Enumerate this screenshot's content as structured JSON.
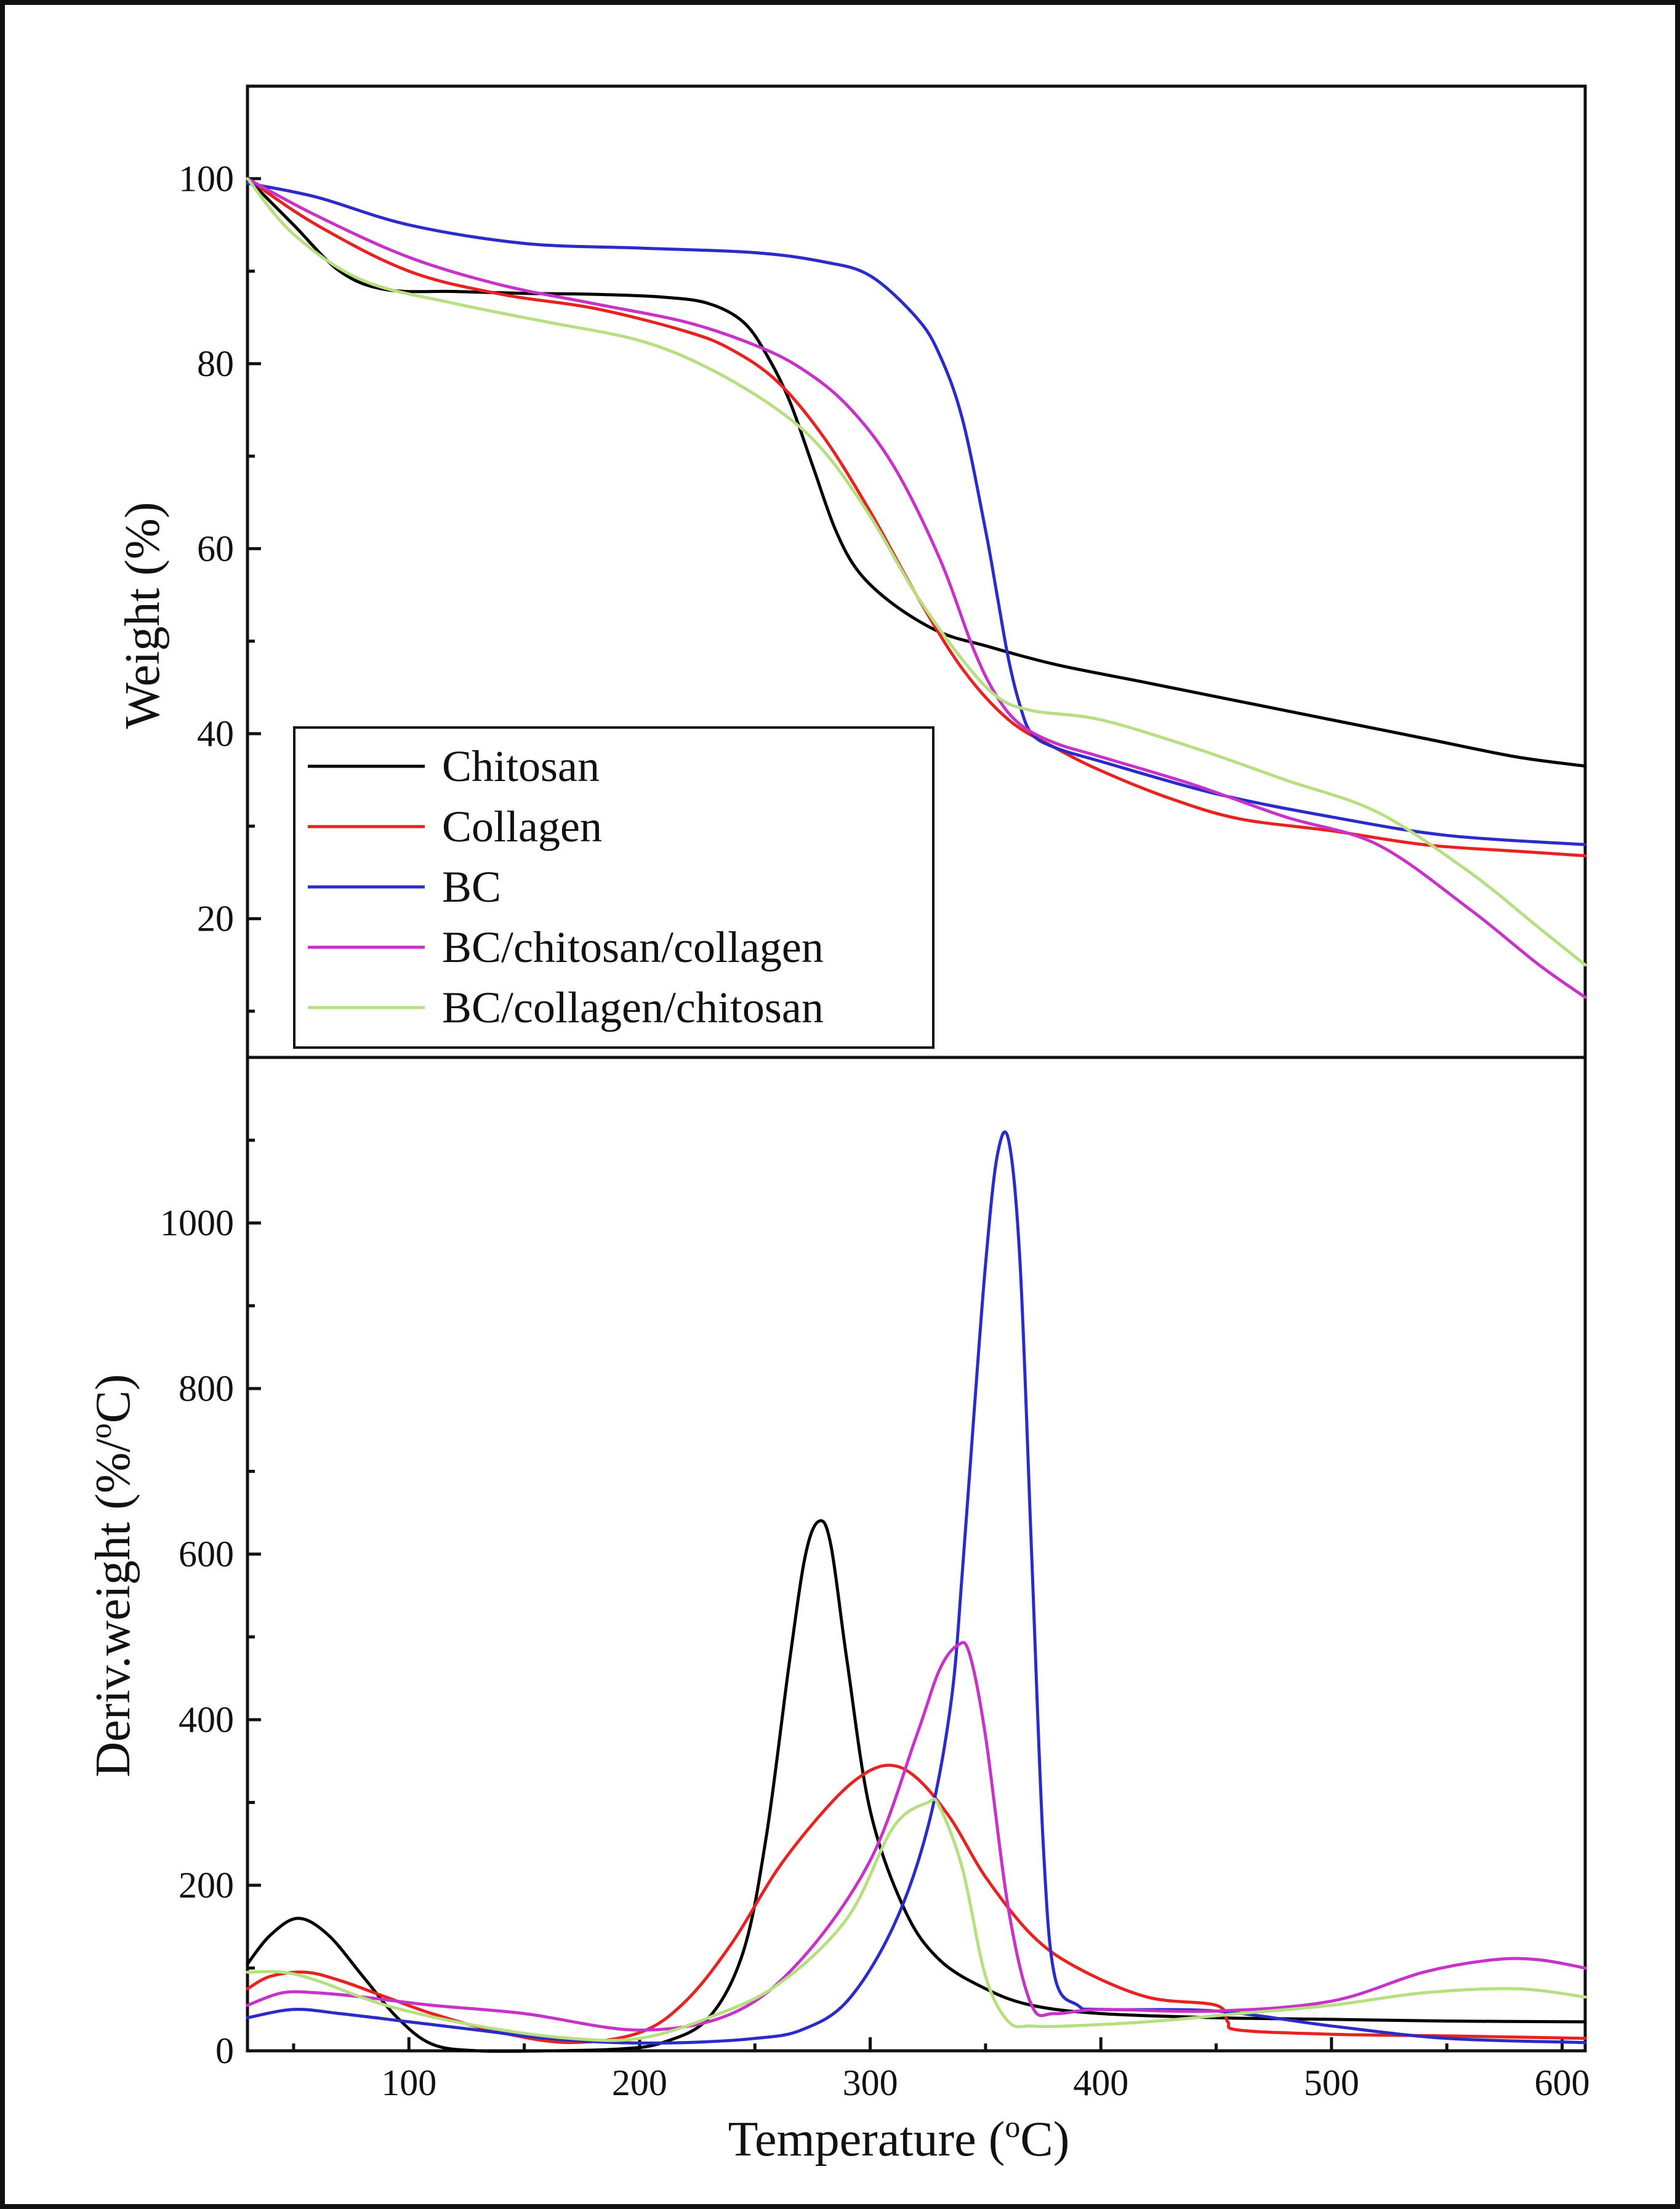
{
  "chart_data": [
    {
      "type": "line",
      "panel": "top",
      "title": "",
      "xlabel": "",
      "ylabel": "Weight (%)",
      "xlim": [
        30,
        610
      ],
      "ylim": [
        5,
        110
      ],
      "yticks": [
        20,
        40,
        60,
        80,
        100
      ],
      "ytick_labels": [
        "20",
        "40",
        "60",
        "80",
        "100"
      ],
      "legend_position": "bottom-left",
      "series": [
        {
          "name": "Chitosan",
          "label": "Chitosan",
          "color": "#000000",
          "x": [
            30,
            50,
            70,
            90,
            120,
            150,
            180,
            210,
            230,
            245,
            255,
            265,
            275,
            285,
            295,
            310,
            330,
            350,
            380,
            420,
            460,
            500,
            540,
            580,
            610
          ],
          "y": [
            100,
            95,
            90,
            88,
            87.8,
            87.6,
            87.5,
            87.2,
            86.5,
            84.5,
            81,
            76,
            69,
            62,
            57.5,
            54,
            51,
            49.5,
            47.5,
            45.5,
            43.5,
            41.5,
            39.5,
            37.5,
            36.5
          ]
        },
        {
          "name": "Collagen",
          "label": "Collagen",
          "color": "#e8231f",
          "x": [
            30,
            60,
            100,
            140,
            180,
            220,
            240,
            260,
            280,
            300,
            320,
            340,
            360,
            380,
            400,
            430,
            460,
            500,
            540,
            580,
            610
          ],
          "y": [
            100,
            95,
            90,
            87.5,
            86,
            83.5,
            81.5,
            78,
            72,
            64,
            55,
            47,
            41.5,
            38.5,
            36,
            33,
            30.8,
            29.5,
            28,
            27.3,
            26.8
          ]
        },
        {
          "name": "BC",
          "label": "BC",
          "color": "#2b2bc9",
          "x": [
            30,
            60,
            100,
            150,
            200,
            250,
            280,
            300,
            320,
            330,
            340,
            350,
            355,
            360,
            365,
            370,
            380,
            400,
            450,
            500,
            550,
            610
          ],
          "y": [
            99.5,
            98,
            95,
            93,
            92.5,
            92,
            91,
            89.5,
            85,
            81,
            74,
            62,
            55,
            48,
            43,
            40,
            38.5,
            37,
            33.5,
            31,
            29,
            28
          ]
        },
        {
          "name": "BC/chitosan/collagen",
          "label": "BC/chitosan/collagen",
          "color": "#c832c8",
          "x": [
            30,
            60,
            100,
            140,
            180,
            220,
            250,
            270,
            290,
            310,
            330,
            345,
            355,
            365,
            380,
            400,
            440,
            480,
            520,
            560,
            590,
            610
          ],
          "y": [
            100,
            96,
            91.5,
            88.5,
            86.5,
            84.5,
            82,
            79.5,
            75.5,
            69,
            59,
            49,
            44,
            41,
            39,
            37.5,
            34.5,
            31,
            28,
            21,
            15,
            11.5
          ]
        },
        {
          "name": "BC/collagen/chitosan",
          "label": "BC/collagen/chitosan",
          "color": "#b6df80",
          "x": [
            30,
            50,
            80,
            120,
            160,
            200,
            230,
            260,
            280,
            300,
            320,
            340,
            355,
            370,
            400,
            440,
            480,
            520,
            560,
            590,
            610
          ],
          "y": [
            100,
            94,
            89,
            86.5,
            84.5,
            82.5,
            79.5,
            75,
            70.5,
            63.5,
            55,
            48,
            44,
            42.5,
            41.5,
            38.5,
            35,
            31.5,
            25,
            19,
            15
          ]
        }
      ]
    },
    {
      "type": "line",
      "panel": "bottom",
      "title": "",
      "xlabel": "Temperature (°C)",
      "xlabel_base": "Temperature (",
      "xlabel_sup": "o",
      "xlabel_tail": "C)",
      "ylabel": "Deriv.weight (%/°C)",
      "ylabel_base": "Deriv.weight (%/",
      "ylabel_sup": "o",
      "ylabel_tail": "C)",
      "xlim": [
        30,
        610
      ],
      "ylim": [
        0,
        1200
      ],
      "xticks": [
        100,
        200,
        300,
        400,
        500,
        600
      ],
      "xtick_labels": [
        "100",
        "200",
        "300",
        "400",
        "500",
        "600"
      ],
      "yticks": [
        0,
        200,
        400,
        600,
        800,
        1000
      ],
      "ytick_labels": [
        "0",
        "200",
        "400",
        "600",
        "800",
        "1000"
      ],
      "series": [
        {
          "name": "Chitosan",
          "color": "#000000",
          "x": [
            30,
            40,
            52,
            65,
            80,
            95,
            110,
            130,
            160,
            190,
            210,
            230,
            245,
            255,
            265,
            272,
            278,
            283,
            290,
            300,
            315,
            330,
            350,
            370,
            400,
            450,
            500,
            550,
            610
          ],
          "y": [
            105,
            140,
            160,
            140,
            90,
            40,
            8,
            0,
            0,
            2,
            10,
            40,
            120,
            260,
            470,
            600,
            640,
            610,
            470,
            290,
            170,
            110,
            75,
            55,
            45,
            40,
            38,
            36,
            35
          ]
        },
        {
          "name": "Collagen",
          "color": "#e8231f",
          "x": [
            30,
            40,
            55,
            70,
            90,
            110,
            140,
            170,
            200,
            220,
            240,
            260,
            280,
            295,
            308,
            320,
            335,
            350,
            370,
            390,
            420,
            450,
            455,
            460,
            500,
            550,
            610
          ],
          "y": [
            75,
            90,
            95,
            85,
            65,
            45,
            22,
            10,
            22,
            60,
            130,
            220,
            290,
            330,
            345,
            330,
            280,
            210,
            140,
            100,
            65,
            55,
            35,
            25,
            20,
            18,
            15
          ]
        },
        {
          "name": "BC",
          "color": "#2b2bc9",
          "x": [
            30,
            50,
            70,
            100,
            130,
            160,
            190,
            220,
            250,
            270,
            290,
            310,
            325,
            335,
            340,
            345,
            350,
            355,
            360,
            365,
            370,
            375,
            380,
            390,
            400,
            450,
            500,
            550,
            610
          ],
          "y": [
            40,
            50,
            45,
            35,
            25,
            15,
            10,
            10,
            15,
            25,
            60,
            150,
            270,
            420,
            580,
            770,
            950,
            1080,
            1100,
            950,
            600,
            250,
            90,
            55,
            50,
            48,
            30,
            15,
            10
          ]
        },
        {
          "name": "BC/chitosan/collagen",
          "color": "#c832c8",
          "x": [
            30,
            45,
            60,
            80,
            110,
            150,
            200,
            240,
            270,
            300,
            320,
            330,
            338,
            343,
            350,
            360,
            370,
            380,
            400,
            450,
            500,
            540,
            570,
            590,
            610
          ],
          "y": [
            55,
            70,
            70,
            65,
            55,
            45,
            25,
            45,
            110,
            230,
            380,
            460,
            490,
            480,
            380,
            170,
            55,
            45,
            50,
            48,
            60,
            95,
            110,
            110,
            100
          ]
        },
        {
          "name": "BC/collagen/chitosan",
          "color": "#b6df80",
          "x": [
            30,
            45,
            60,
            90,
            130,
            170,
            200,
            230,
            260,
            290,
            310,
            325,
            330,
            340,
            350,
            360,
            370,
            385,
            420,
            460,
            500,
            540,
            580,
            610
          ],
          "y": [
            95,
            95,
            85,
            55,
            30,
            15,
            15,
            40,
            80,
            160,
            270,
            300,
            295,
            220,
            90,
            35,
            30,
            30,
            35,
            45,
            55,
            70,
            75,
            65
          ]
        }
      ]
    }
  ]
}
